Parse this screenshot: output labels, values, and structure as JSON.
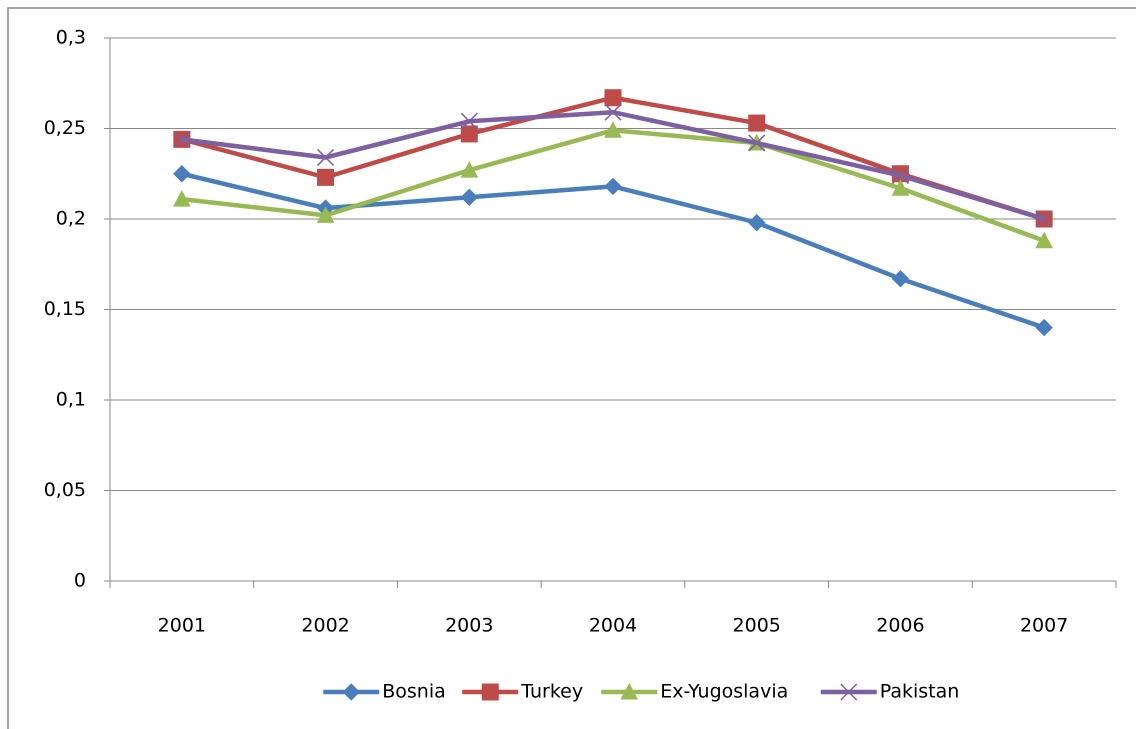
{
  "chart_data": {
    "type": "line",
    "categories": [
      "2001",
      "2002",
      "2003",
      "2004",
      "2005",
      "2006",
      "2007"
    ],
    "series": [
      {
        "name": "Bosnia",
        "color": "#4a7ebb",
        "marker": "diamond",
        "values": [
          0.225,
          0.206,
          0.212,
          0.218,
          0.198,
          0.167,
          0.14
        ]
      },
      {
        "name": "Turkey",
        "color": "#be4b48",
        "marker": "square",
        "values": [
          0.244,
          0.223,
          0.247,
          0.267,
          0.253,
          0.225,
          0.2
        ]
      },
      {
        "name": "Ex-Yugoslavia",
        "color": "#98b954",
        "marker": "triangle",
        "values": [
          0.211,
          0.202,
          0.227,
          0.249,
          0.242,
          0.217,
          0.188
        ]
      },
      {
        "name": "Pakistan",
        "color": "#7d60a0",
        "marker": "x",
        "values": [
          0.244,
          0.234,
          0.254,
          0.259,
          0.242,
          0.224,
          0.2
        ]
      }
    ],
    "ylim": [
      0,
      0.3
    ],
    "yticks": [
      0,
      {
        "value": 0.05,
        "label": "0,05"
      },
      {
        "value": 0.1,
        "label": "0,1"
      },
      {
        "value": 0.15,
        "label": "0,15"
      },
      {
        "value": 0.2,
        "label": "0,2"
      },
      {
        "value": 0.25,
        "label": "0,25"
      },
      {
        "value": 0.3,
        "label": "0,3"
      }
    ],
    "grid": true,
    "legend": "bottom"
  }
}
